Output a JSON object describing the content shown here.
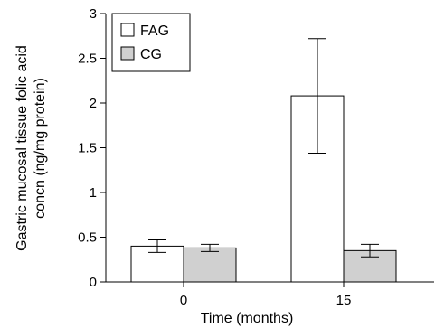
{
  "chart_data": {
    "type": "bar",
    "xlabel": "Time (months)",
    "ylabel_lines": [
      "Gastric mucosal tissue folic acid",
      "concn (ng/mg protein)"
    ],
    "categories": [
      "0",
      "15"
    ],
    "ylim": [
      0,
      3
    ],
    "yticks": [
      "0",
      "0.5",
      "1",
      "1.5",
      "2",
      "2.5",
      "3"
    ],
    "legend_position": "top-left",
    "grid": false,
    "series": [
      {
        "name": "FAG",
        "color": "#ffffff",
        "values": [
          0.4,
          2.08
        ],
        "errors": [
          0.07,
          0.64
        ]
      },
      {
        "name": "CG",
        "color": "#d0d0d0",
        "values": [
          0.38,
          0.35
        ],
        "errors": [
          0.04,
          0.07
        ]
      }
    ]
  }
}
